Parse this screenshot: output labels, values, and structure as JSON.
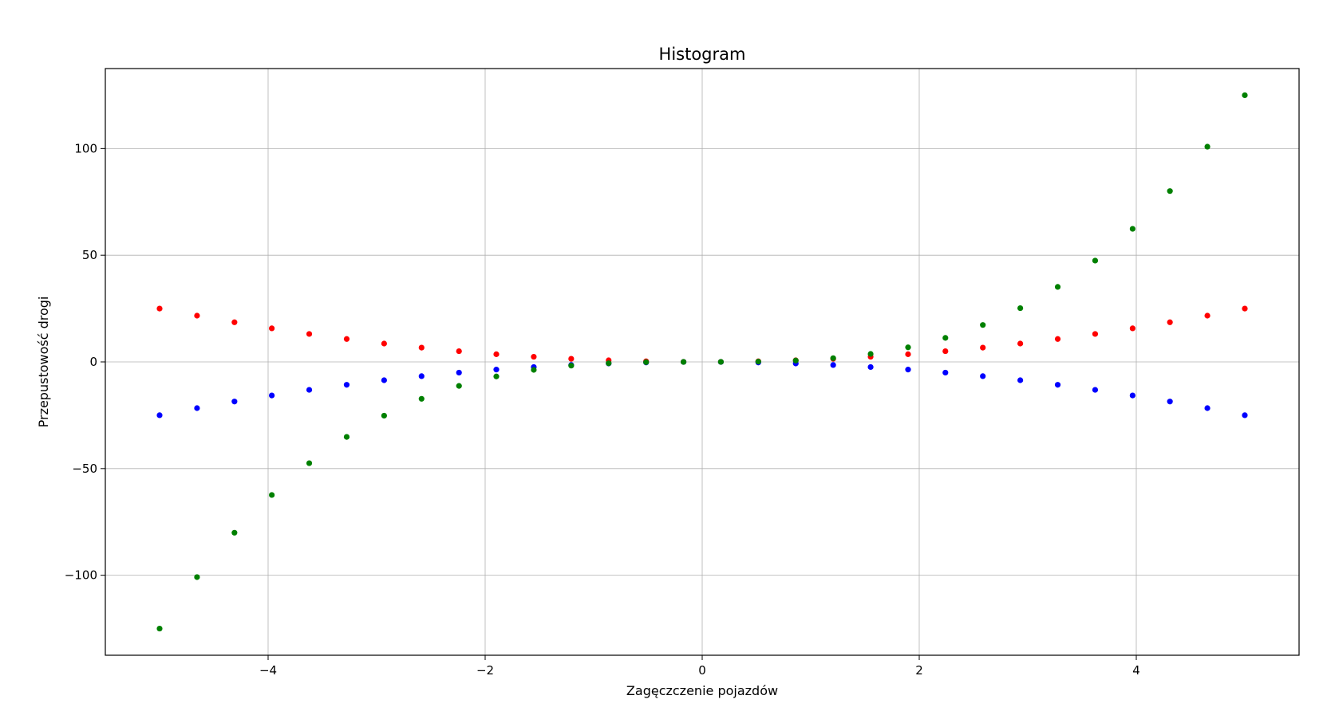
{
  "chart_data": {
    "type": "scatter",
    "title": "Histogram",
    "xlabel": "Zagęczczenie pojazdów",
    "ylabel": "Przepustowość drogi",
    "xlim": [
      -5.5,
      5.5
    ],
    "ylim": [
      -137.5,
      137.5
    ],
    "xticks": [
      -4,
      -2,
      0,
      2,
      4
    ],
    "yticks": [
      -100,
      -50,
      0,
      50,
      100
    ],
    "xtick_labels": [
      "−4",
      "−2",
      "0",
      "2",
      "4"
    ],
    "ytick_labels": [
      "−100",
      "−50",
      "0",
      "50",
      "100"
    ],
    "grid": true,
    "x": [
      -5.0,
      -4.655,
      -4.31,
      -3.966,
      -3.621,
      -3.276,
      -2.931,
      -2.586,
      -2.241,
      -1.897,
      -1.552,
      -1.207,
      -0.862,
      -0.517,
      -0.172,
      0.172,
      0.517,
      0.862,
      1.207,
      1.552,
      1.897,
      2.241,
      2.586,
      2.931,
      3.276,
      3.621,
      3.966,
      4.31,
      4.655,
      5.0
    ],
    "series": [
      {
        "color": "#ff0000",
        "values": [
          25.0,
          21.67,
          18.58,
          15.73,
          13.11,
          10.73,
          8.59,
          6.69,
          5.02,
          3.6,
          2.41,
          1.46,
          0.74,
          0.27,
          0.03,
          0.03,
          0.27,
          0.74,
          1.46,
          2.41,
          3.6,
          5.02,
          6.69,
          8.59,
          10.73,
          13.11,
          15.73,
          18.58,
          21.67,
          25.0
        ]
      },
      {
        "color": "#0000ff",
        "values": [
          -25.0,
          -21.67,
          -18.58,
          -15.73,
          -13.11,
          -10.73,
          -8.59,
          -6.69,
          -5.02,
          -3.6,
          -2.41,
          -1.46,
          -0.74,
          -0.27,
          -0.03,
          -0.03,
          -0.27,
          -0.74,
          -1.46,
          -2.41,
          -3.6,
          -5.02,
          -6.69,
          -8.59,
          -10.73,
          -13.11,
          -15.73,
          -18.58,
          -21.67,
          -25.0
        ]
      },
      {
        "color": "#008000",
        "values": [
          -125.0,
          -100.87,
          -80.07,
          -62.38,
          -47.47,
          -35.16,
          -25.19,
          -17.3,
          -11.26,
          -6.82,
          -3.74,
          -1.76,
          -0.64,
          -0.14,
          -0.01,
          0.01,
          0.14,
          0.64,
          1.76,
          3.74,
          6.82,
          11.26,
          17.3,
          25.19,
          35.16,
          47.47,
          62.38,
          80.07,
          100.87,
          125.0
        ]
      }
    ]
  }
}
